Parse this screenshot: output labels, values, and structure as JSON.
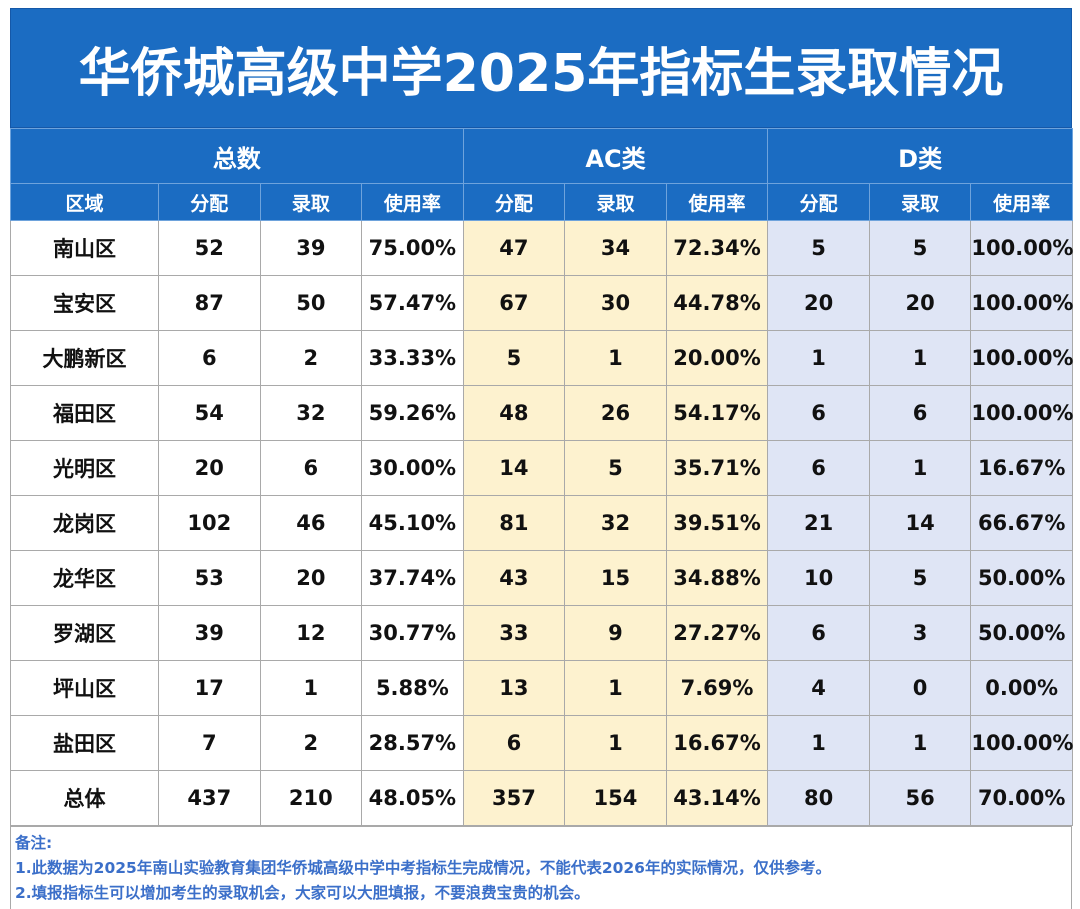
{
  "table": {
    "title": "华侨城高级中学2025年指标生录取情况",
    "groups": [
      "总数",
      "AC类",
      "D类"
    ],
    "columns": [
      "区域",
      "分配",
      "录取",
      "使用率",
      "分配",
      "录取",
      "使用率",
      "分配",
      "录取",
      "使用率"
    ],
    "rows": [
      [
        "南山区",
        "52",
        "39",
        "75.00%",
        "47",
        "34",
        "72.34%",
        "5",
        "5",
        "100.00%"
      ],
      [
        "宝安区",
        "87",
        "50",
        "57.47%",
        "67",
        "30",
        "44.78%",
        "20",
        "20",
        "100.00%"
      ],
      [
        "大鹏新区",
        "6",
        "2",
        "33.33%",
        "5",
        "1",
        "20.00%",
        "1",
        "1",
        "100.00%"
      ],
      [
        "福田区",
        "54",
        "32",
        "59.26%",
        "48",
        "26",
        "54.17%",
        "6",
        "6",
        "100.00%"
      ],
      [
        "光明区",
        "20",
        "6",
        "30.00%",
        "14",
        "5",
        "35.71%",
        "6",
        "1",
        "16.67%"
      ],
      [
        "龙岗区",
        "102",
        "46",
        "45.10%",
        "81",
        "32",
        "39.51%",
        "21",
        "14",
        "66.67%"
      ],
      [
        "龙华区",
        "53",
        "20",
        "37.74%",
        "43",
        "15",
        "34.88%",
        "10",
        "5",
        "50.00%"
      ],
      [
        "罗湖区",
        "39",
        "12",
        "30.77%",
        "33",
        "9",
        "27.27%",
        "6",
        "3",
        "50.00%"
      ],
      [
        "坪山区",
        "17",
        "1",
        "5.88%",
        "13",
        "1",
        "7.69%",
        "4",
        "0",
        "0.00%"
      ],
      [
        "盐田区",
        "7",
        "2",
        "28.57%",
        "6",
        "1",
        "16.67%",
        "1",
        "1",
        "100.00%"
      ],
      [
        "总体",
        "437",
        "210",
        "48.05%",
        "357",
        "154",
        "43.14%",
        "80",
        "56",
        "70.00%"
      ]
    ]
  },
  "notes": {
    "label": "备注:",
    "lines": [
      "1.此数据为2025年南山实验教育集团华侨城高级中学中考指标生完成情况，不能代表2026年的实际情况，仅供参考。",
      "2.填报指标生可以增加考生的录取机会，大家可以大胆填报，不要浪费宝贵的机会。"
    ]
  }
}
